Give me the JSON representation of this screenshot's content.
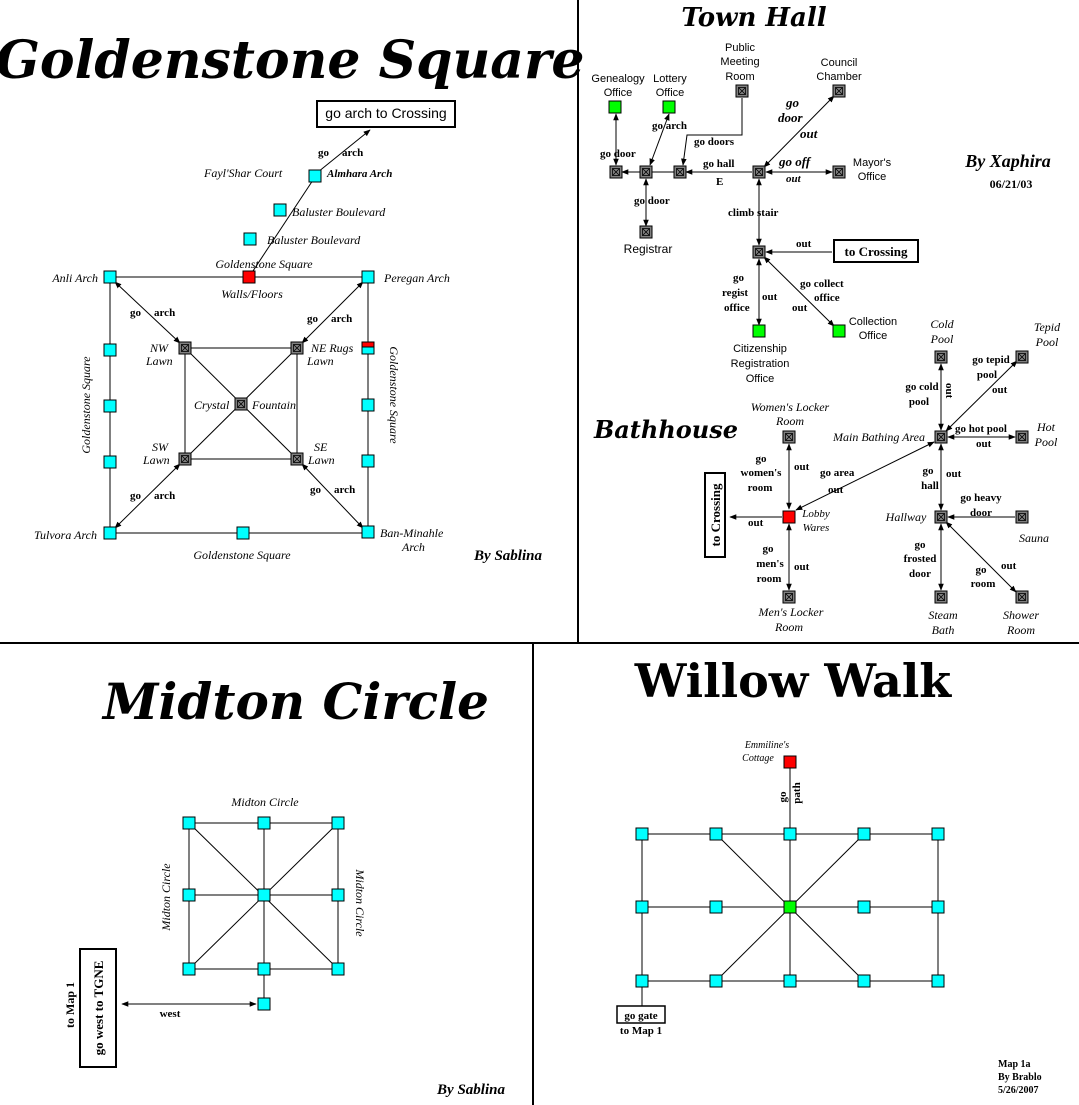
{
  "goldenstone": {
    "title": "Goldenstone Square",
    "byline": "By Sablina",
    "exit_box": "go arch to Crossing",
    "labels": {
      "fayl": "Fayl'Shar Court",
      "almhara": "Almhara Arch",
      "baluster1": "Baluster Boulevard",
      "baluster2": "Baluster Boulevard",
      "square_top": "Goldenstone Square",
      "walls": "Walls/Floors",
      "anli": "Anli Arch",
      "peregan": "Peregan Arch",
      "nw1": "NW",
      "nw2": "Lawn",
      "ne1": "NE Rugs",
      "ne2": "Lawn",
      "crystal": "Crystal",
      "fountain": "Fountain",
      "sw1": "SW",
      "sw2": "Lawn",
      "se1": "SE",
      "se2": "Lawn",
      "tulvora": "Tulvora Arch",
      "banminahle1": "Ban-Minahle",
      "banminahle2": "Arch",
      "square_bottom": "Goldenstone Square",
      "square_left": "Goldenstone Square",
      "square_right": "Goldenstone Square",
      "go": "go",
      "arch": "arch"
    }
  },
  "townhall": {
    "title": "Town Hall",
    "byline": "By Xaphira",
    "date": "06/21/03",
    "rooms": {
      "genealogy1": "Genealogy",
      "genealogy2": "Office",
      "lottery1": "Lottery",
      "lottery2": "Office",
      "public1": "Public",
      "public2": "Meeting",
      "public3": "Room",
      "council1": "Council",
      "council2": "Chamber",
      "mayor1": "Mayor's",
      "mayor2": "Office",
      "registrar": "Registrar",
      "collection1": "Collection",
      "collection2": "Office",
      "citizen1": "Citizenship",
      "citizen2": "Registration",
      "citizen3": "Office"
    },
    "exits": {
      "go_door": "go door",
      "go_arch": "go arch",
      "go_doors": "go doors",
      "go_door_out1": "go",
      "go_door_out2": "door",
      "go_door_out3": "out",
      "go_hall": "go hall",
      "e": "E",
      "go_off": "go off",
      "out": "out",
      "go_door2": "go door",
      "climb_stair": "climb  stair",
      "out2": "out",
      "to_crossing": "to Crossing",
      "go_regist1": "go",
      "go_regist2": "regist",
      "go_regist3": "office",
      "out3": "out",
      "go_collect1": "go collect",
      "go_collect2": "office",
      "out4": "out"
    }
  },
  "bathhouse": {
    "title": "Bathhouse",
    "rooms": {
      "cold1": "Cold",
      "cold2": "Pool",
      "tepid1": "Tepid",
      "tepid2": "Pool",
      "women1": "Women's Locker",
      "women2": "Room",
      "main": "Main Bathing Area",
      "hot1": "Hot",
      "hot2": "Pool",
      "lobby1": "Lobby",
      "lobby2": "Wares",
      "hallway": "Hallway",
      "sauna": "Sauna",
      "men1": "Men's Locker",
      "men2": "Room",
      "steam1": "Steam",
      "steam2": "Bath",
      "shower1": "Shower",
      "shower2": "Room"
    },
    "exits": {
      "go_cold1": "go cold",
      "go_cold2": "pool",
      "out_cold": "out",
      "go_tepid1": "go tepid",
      "go_tepid2": "pool",
      "out_tepid": "out",
      "go_hot": "go hot pool",
      "out_hot": "out",
      "go_women1": "go",
      "go_women2": "women's",
      "go_women3": "room",
      "out_women": "out",
      "go_area": "go area",
      "out_area": "out",
      "go_hall1": "go",
      "go_hall2": "hall",
      "out_hall": "out",
      "go_heavy1": "go heavy",
      "go_heavy2": "door",
      "out_lobby": "out",
      "to_crossing": "to Crossing",
      "go_men1": "go",
      "go_men2": "men's",
      "go_men3": "room",
      "out_men": "out",
      "go_frosted1": "go",
      "go_frosted2": "frosted",
      "go_frosted3": "door",
      "go_room1": "go",
      "go_room2": "room",
      "out_room": "out"
    }
  },
  "midton": {
    "title": "Midton Circle",
    "byline": "By Sablina",
    "label_top": "Midton Circle",
    "label_left": "Midton Circle",
    "label_right": "Midton Circle",
    "west": "west",
    "exit_box": "go west to TGNE",
    "to_map": "to Map 1"
  },
  "willow": {
    "title": "Willow Walk",
    "cottage1": "Emmiline's",
    "cottage2": "Cottage",
    "go_path1": "go",
    "go_path2": "path",
    "go_gate": "go gate",
    "to_map": "to Map 1",
    "credit1": "Map 1a",
    "credit2": "By Brablo",
    "credit3": "5/26/2007"
  }
}
